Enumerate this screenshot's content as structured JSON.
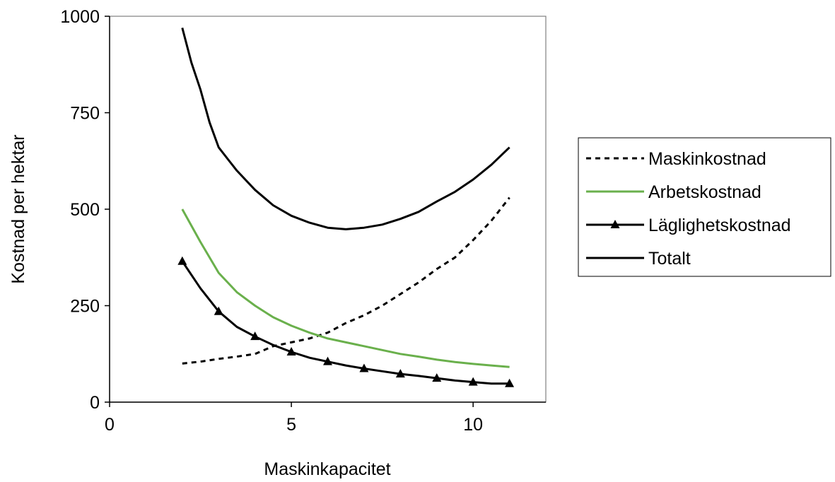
{
  "chart_data": {
    "type": "line",
    "title": "",
    "xlabel": "Maskinkapacitet",
    "ylabel": "Kostnad per hektar",
    "xlim": [
      0,
      12
    ],
    "ylim": [
      0,
      1000
    ],
    "xticks": [
      0,
      5,
      10
    ],
    "yticks": [
      0,
      250,
      500,
      750,
      1000
    ],
    "grid": false,
    "legend_position": "right",
    "series": [
      {
        "name": "Maskinkostnad",
        "color": "#000000",
        "style": "dashed",
        "marker": "none",
        "x": [
          2,
          2.5,
          3,
          3.5,
          4,
          4.5,
          5,
          5.5,
          6,
          6.5,
          7,
          7.5,
          8,
          8.5,
          9,
          9.5,
          10,
          10.5,
          11
        ],
        "y": [
          100,
          105,
          112,
          118,
          125,
          145,
          155,
          165,
          180,
          205,
          225,
          250,
          280,
          310,
          345,
          375,
          420,
          470,
          530
        ]
      },
      {
        "name": "Arbetskostnad",
        "color": "#6ab04c",
        "style": "solid",
        "marker": "none",
        "x": [
          2,
          2.5,
          3,
          3.5,
          4,
          4.5,
          5,
          5.5,
          6,
          6.5,
          7,
          7.5,
          8,
          8.5,
          9,
          9.5,
          10,
          10.5,
          11
        ],
        "y": [
          500,
          415,
          335,
          285,
          250,
          220,
          198,
          180,
          165,
          155,
          145,
          135,
          125,
          118,
          110,
          104,
          99,
          95,
          91
        ]
      },
      {
        "name": "Läglighetskostnad",
        "color": "#000000",
        "style": "solid",
        "marker": "triangle",
        "x": [
          2,
          2.5,
          3,
          3.5,
          4,
          4.5,
          5,
          5.5,
          6,
          6.5,
          7,
          7.5,
          8,
          8.5,
          9,
          9.5,
          10,
          10.5,
          11
        ],
        "y": [
          365,
          295,
          235,
          195,
          170,
          148,
          130,
          115,
          105,
          95,
          87,
          80,
          73,
          68,
          62,
          56,
          52,
          48,
          48
        ]
      },
      {
        "name": "Totalt",
        "color": "#000000",
        "style": "solid",
        "marker": "none",
        "x": [
          2,
          2.25,
          2.5,
          2.75,
          3,
          3.25,
          3.5,
          4,
          4.5,
          5,
          5.5,
          6,
          6.5,
          7,
          7.5,
          8,
          8.5,
          9,
          9.5,
          10,
          10.5,
          11
        ],
        "y": [
          970,
          880,
          810,
          725,
          660,
          630,
          600,
          550,
          510,
          483,
          465,
          452,
          448,
          452,
          460,
          475,
          493,
          520,
          545,
          577,
          615,
          660
        ]
      }
    ]
  }
}
